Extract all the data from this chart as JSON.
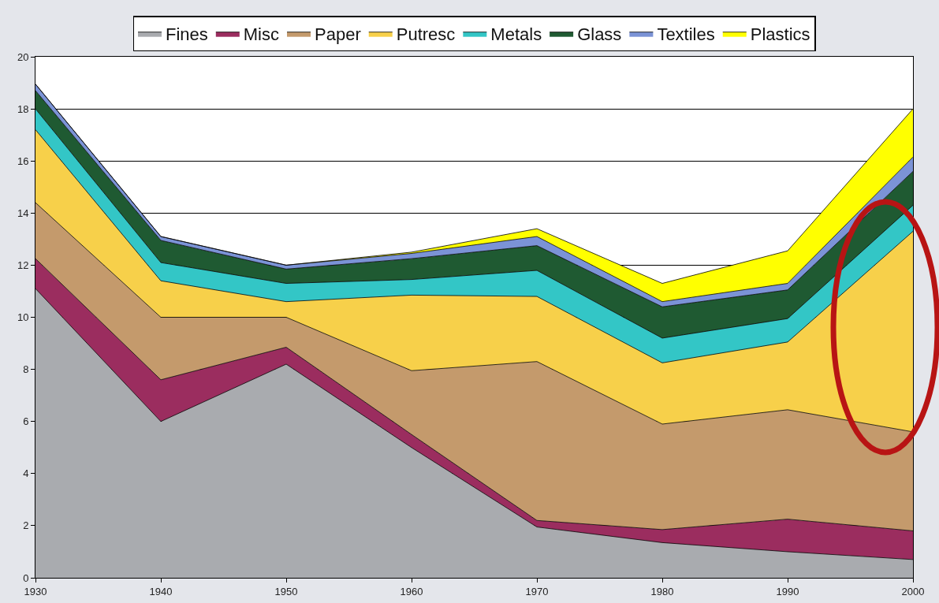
{
  "chart_data": {
    "type": "area",
    "stacked": true,
    "x": [
      1930,
      1940,
      1950,
      1960,
      1970,
      1980,
      1990,
      2000
    ],
    "series": [
      {
        "name": "Fines",
        "color": "#a9abaf",
        "values": [
          11.1,
          6.0,
          8.2,
          5.0,
          1.95,
          1.35,
          1.0,
          0.7
        ]
      },
      {
        "name": "Misc",
        "color": "#9b2d5f",
        "values": [
          1.15,
          1.6,
          0.65,
          0.5,
          0.25,
          0.5,
          1.25,
          1.1
        ]
      },
      {
        "name": "Paper",
        "color": "#c49a6c",
        "values": [
          2.15,
          2.4,
          1.15,
          2.45,
          6.1,
          4.05,
          4.2,
          3.8
        ]
      },
      {
        "name": "Putresc",
        "color": "#f7d04a",
        "values": [
          2.8,
          1.4,
          0.6,
          2.9,
          2.5,
          2.35,
          2.6,
          7.7
        ]
      },
      {
        "name": "Metals",
        "color": "#33c6c6",
        "values": [
          0.8,
          0.7,
          0.7,
          0.6,
          1.0,
          0.95,
          0.9,
          1.0
        ]
      },
      {
        "name": "Glass",
        "color": "#1f5a32",
        "values": [
          0.7,
          0.85,
          0.55,
          0.8,
          0.95,
          1.2,
          1.1,
          1.3
        ]
      },
      {
        "name": "Textiles",
        "color": "#7b93d6",
        "values": [
          0.25,
          0.15,
          0.15,
          0.2,
          0.35,
          0.2,
          0.25,
          0.55
        ]
      },
      {
        "name": "Plastics",
        "color": "#ffff00",
        "values": [
          0,
          0,
          0,
          0.05,
          0.3,
          0.7,
          1.25,
          1.85
        ]
      }
    ],
    "xlim": [
      1930,
      2000
    ],
    "xticks": [
      1930,
      1940,
      1950,
      1960,
      1970,
      1980,
      1990,
      2000
    ],
    "ylim": [
      0,
      20
    ],
    "yticks": [
      0,
      2,
      4,
      6,
      8,
      10,
      12,
      14,
      16,
      18,
      20
    ],
    "grid": "y",
    "legend": "top",
    "marker": "none",
    "line_style": "solid"
  }
}
